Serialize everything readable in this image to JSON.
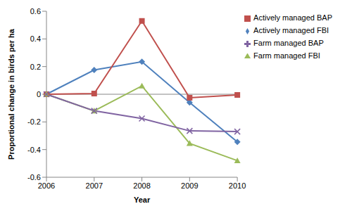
{
  "chart_data": {
    "type": "line",
    "x_label": "Year",
    "y_label": "Proportional change in birds per ha",
    "categories": [
      "2006",
      "2007",
      "2008",
      "2009",
      "2010"
    ],
    "series": [
      {
        "name": "Actively managed FBI",
        "color": "#4F81BD",
        "marker": "diamond",
        "values": [
          0,
          0.175,
          0.235,
          -0.06,
          -0.345
        ]
      },
      {
        "name": "Actively managed BAP",
        "color": "#C0504D",
        "marker": "square",
        "values": [
          0,
          0.005,
          0.53,
          -0.025,
          -0.005
        ]
      },
      {
        "name": "Farm managed FBI",
        "color": "#9BBB59",
        "marker": "triangle",
        "values": [
          0,
          -0.12,
          0.06,
          -0.355,
          -0.48
        ]
      },
      {
        "name": "Farm managed BAP",
        "color": "#8064A2",
        "marker": "x",
        "values": [
          0,
          -0.12,
          -0.175,
          -0.265,
          -0.27
        ]
      }
    ],
    "ylim": [
      -0.6,
      0.6
    ],
    "yticks": [
      -0.6,
      -0.4,
      -0.2,
      0,
      0.2,
      0.4,
      0.6
    ],
    "grid": false,
    "legend": "right"
  }
}
